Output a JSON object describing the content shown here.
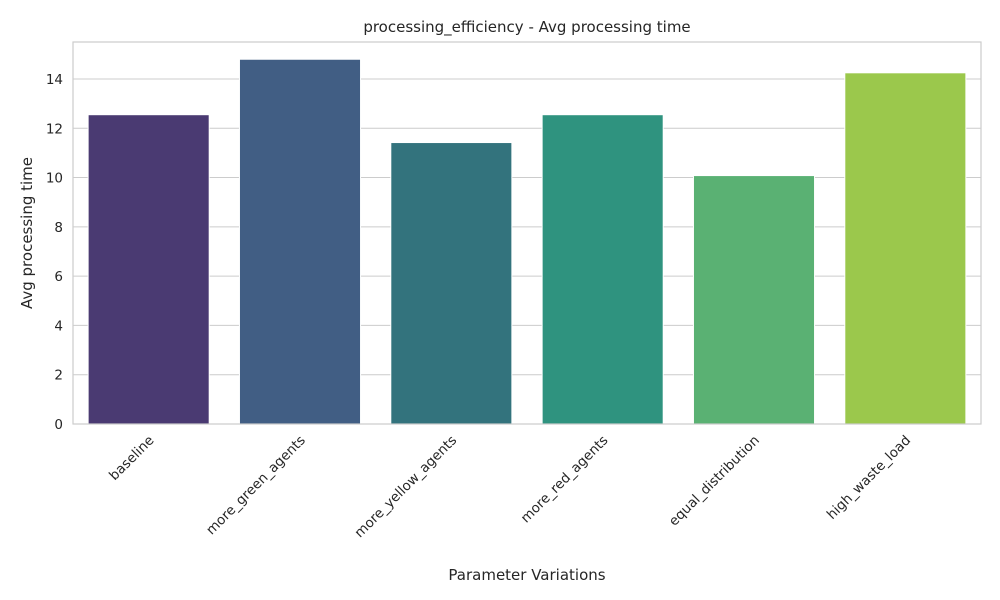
{
  "chart_data": {
    "type": "bar",
    "title": "processing_efficiency - Avg processing time",
    "xlabel": "Parameter Variations",
    "ylabel": "Avg processing time",
    "categories": [
      "baseline",
      "more_green_agents",
      "more_yellow_agents",
      "more_red_agents",
      "equal_distribution",
      "high_waste_load"
    ],
    "values": [
      12.55,
      14.8,
      11.42,
      12.55,
      10.08,
      14.25
    ],
    "colors": [
      "#4a3a72",
      "#415e84",
      "#33737d",
      "#2f937f",
      "#5ab173",
      "#9bc84c"
    ],
    "ylim": [
      0,
      15.5
    ],
    "yticks": [
      0,
      2,
      4,
      6,
      8,
      10,
      12,
      14
    ],
    "grid": "horizontal",
    "legend": "none"
  }
}
